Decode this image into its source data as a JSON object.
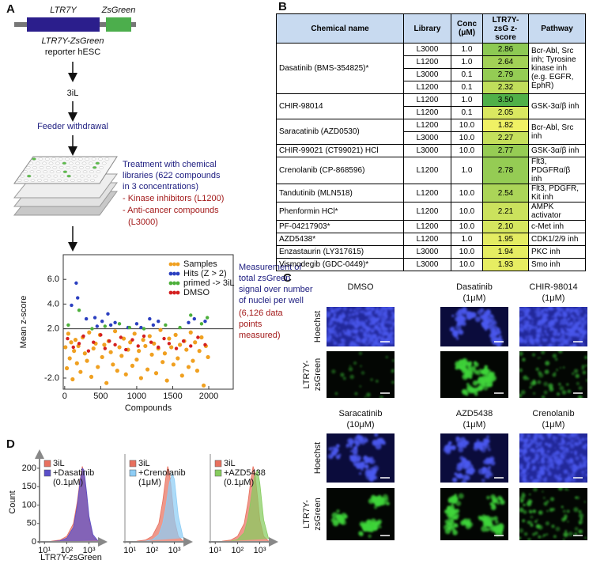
{
  "panel_labels": [
    "A",
    "B",
    "C",
    "D"
  ],
  "panel_a": {
    "construct": {
      "ltr": "LTR7Y",
      "reporter": "ZsGreen"
    },
    "cell_line": [
      "LTR7Y-ZsGreen",
      "reporter hESC"
    ],
    "steps": [
      "3iL",
      "Feeder withdrawal"
    ],
    "treatment": [
      "Treatment with chemical",
      "libraries (622 compounds",
      "in 3 concentrations)"
    ],
    "libraries": [
      "- Kinase inhibitors (L1200)",
      "- Anti-cancer compounds",
      "(L3000)"
    ],
    "measurement": [
      "Measurement of",
      "total zsGreen",
      "signal over number",
      "of nuclei per well"
    ],
    "points_note": [
      "(6,126 data",
      "points",
      "measured)"
    ]
  },
  "table": {
    "columns": [
      "Chemical name",
      "Library",
      "Conc (μM)",
      "LTR7Y-zsG z-score",
      "Pathway"
    ],
    "groups": [
      {
        "name": "Dasatinib (BMS-354825)*",
        "pathway": "Bcr-Abl, Src inh; Tyrosine kinase inh (e.g. EGFR, EphR)",
        "rows": [
          [
            "L3000",
            "1.0",
            "2.86"
          ],
          [
            "L1200",
            "1.0",
            "2.64"
          ],
          [
            "L3000",
            "0.1",
            "2.79"
          ],
          [
            "L1200",
            "0.1",
            "2.32"
          ]
        ]
      },
      {
        "name": "CHIR-98014",
        "pathway": "GSK-3α/β inh",
        "rows": [
          [
            "L1200",
            "1.0",
            "3.50"
          ],
          [
            "L1200",
            "0.1",
            "2.05"
          ]
        ]
      },
      {
        "name": "Saracatinib (AZD0530)",
        "pathway": "Bcr-Abl, Src inh",
        "rows": [
          [
            "L1200",
            "10.0",
            "1.82"
          ],
          [
            "L3000",
            "10.0",
            "2.27"
          ]
        ]
      },
      {
        "name": "CHIR-99021 (CT99021) HCl",
        "pathway": "GSK-3α/β inh",
        "rows": [
          [
            "L3000",
            "10.0",
            "2.77"
          ]
        ]
      },
      {
        "name": "Crenolanib (CP-868596)",
        "pathway": "Flt3, PDGFRα/β inh",
        "rows": [
          [
            "L1200",
            "1.0",
            "2.78"
          ]
        ]
      },
      {
        "name": "Tandutinib (MLN518)",
        "pathway": "Flt3, PDGFR, Kit inh",
        "rows": [
          [
            "L1200",
            "10.0",
            "2.54"
          ]
        ]
      },
      {
        "name": "Phenformin HCl*",
        "pathway": "AMPK activator",
        "rows": [
          [
            "L1200",
            "10.0",
            "2.21"
          ]
        ]
      },
      {
        "name": "PF-04217903*",
        "pathway": "c-Met inh",
        "rows": [
          [
            "L1200",
            "10.0",
            "2.10"
          ]
        ]
      },
      {
        "name": "AZD5438*",
        "pathway": "CDK1/2/9 inh",
        "rows": [
          [
            "L1200",
            "1.0",
            "1.95"
          ]
        ]
      },
      {
        "name": "Enzastaurin (LY317615)",
        "pathway": "PKC inh",
        "rows": [
          [
            "L3000",
            "10.0",
            "1.94"
          ]
        ]
      },
      {
        "name": "Vismodegib (GDC-0449)*",
        "pathway": "Smo inh",
        "rows": [
          [
            "L3000",
            "10.0",
            "1.93"
          ]
        ]
      }
    ]
  },
  "panel_c": {
    "channels": [
      "Hoechst",
      [
        "LTR7Y-",
        "zsGreen"
      ]
    ],
    "blocks": [
      [
        [
          "DMSO"
        ],
        [
          "Dasatinib",
          "(1μM)"
        ],
        [
          "CHIR-98014",
          "(1μM)"
        ]
      ],
      [
        [
          "Saracatinib",
          "(10μM)"
        ],
        [
          "AZD5438",
          "(1μM)"
        ],
        [
          "Crenolanib",
          "(1μM)"
        ]
      ]
    ]
  },
  "chart_data": [
    {
      "type": "scatter",
      "xlabel": "Compounds",
      "ylabel": "Mean z-score",
      "xlim": [
        -20,
        2340
      ],
      "ylim": [
        -2.9,
        8.0
      ],
      "xticks": [
        0,
        500,
        1000,
        1500,
        2000
      ],
      "yticks": [
        {
          "value": 6,
          "label": "6.0"
        },
        {
          "value": 4,
          "label": "4.0"
        },
        {
          "value": 2,
          "label": "2.0"
        },
        {
          "value": -2,
          "label": "-2.0"
        }
      ],
      "threshold": 2,
      "series": [
        {
          "name": "Samples",
          "color": "#f0a020",
          "x": [
            10,
            30,
            50,
            70,
            90,
            110,
            130,
            150,
            170,
            190,
            220,
            250,
            280,
            310,
            340,
            370,
            400,
            430,
            460,
            490,
            520,
            550,
            580,
            610,
            640,
            670,
            700,
            730,
            760,
            790,
            820,
            850,
            880,
            910,
            940,
            970,
            1000,
            1030,
            1060,
            1090,
            1120,
            1150,
            1180,
            1210,
            1240,
            1270,
            1300,
            1330,
            1360,
            1390,
            1420,
            1450,
            1480,
            1510,
            1540,
            1570,
            1600,
            1630,
            1660,
            1690,
            1720,
            1750,
            1780,
            1810,
            1840,
            1870,
            1900,
            1930,
            1960,
            1990
          ],
          "values": [
            0.5,
            -1.2,
            1.6,
            -0.4,
            0.9,
            -2.1,
            0.2,
            1.1,
            -0.8,
            0.6,
            -1.5,
            1.3,
            0.0,
            -0.6,
            1.7,
            -1.9,
            0.4,
            0.8,
            -1.1,
            1.5,
            -0.3,
            0.7,
            -2.4,
            1.0,
            0.1,
            -0.9,
            1.8,
            -1.4,
            0.5,
            -0.2,
            1.2,
            -1.7,
            0.3,
            0.9,
            -1.0,
            1.6,
            -0.5,
            0.2,
            -2.0,
            1.1,
            0.6,
            -1.3,
            1.4,
            -0.1,
            0.8,
            -1.6,
            0.4,
            1.9,
            -0.7,
            0.0,
            -2.2,
            1.2,
            0.5,
            -0.9,
            1.5,
            -0.4,
            0.7,
            -1.8,
            1.0,
            0.3,
            -1.1,
            1.7,
            -0.6,
            0.9,
            -1.4,
            0.2,
            1.3,
            -2.6,
            0.6,
            -0.3
          ]
        },
        {
          "name": "Hits (Z > 2)",
          "color": "#2b3fc0",
          "x": [
            95,
            160,
            180,
            300,
            420,
            450,
            520,
            600,
            640,
            700,
            880,
            1000,
            1060,
            1180,
            1230,
            1300,
            1720,
            1800,
            1950
          ],
          "values": [
            3.9,
            5.7,
            4.5,
            2.8,
            2.9,
            2.2,
            2.6,
            3.2,
            2.3,
            2.5,
            2.1,
            2.4,
            2.1,
            2.8,
            2.3,
            2.6,
            2.5,
            2.8,
            2.6
          ]
        },
        {
          "name": "primed -> 3iL",
          "color": "#4caf3a",
          "x": [
            50,
            200,
            380,
            560,
            760,
            900,
            1100,
            1400,
            1600,
            1750,
            1900,
            1980
          ],
          "values": [
            2.3,
            3.5,
            2.0,
            2.2,
            2.4,
            2.1,
            2.0,
            2.3,
            2.1,
            3.1,
            2.4,
            2.9
          ]
        },
        {
          "name": "DMSO",
          "color": "#d42020",
          "x": [
            40,
            120,
            200,
            260,
            330,
            400,
            500,
            560,
            620,
            700,
            780,
            850,
            940,
            1020,
            1100,
            1200,
            1300,
            1380,
            1450,
            1550,
            1650,
            1750,
            1850,
            1950
          ],
          "values": [
            1.2,
            0.5,
            0.8,
            1.4,
            0.2,
            0.9,
            1.5,
            0.4,
            1.0,
            0.7,
            1.3,
            0.3,
            1.1,
            0.6,
            1.4,
            0.9,
            0.5,
            1.2,
            0.8,
            0.4,
            1.0,
            0.6,
            1.3,
            0.7
          ]
        }
      ]
    },
    {
      "type": "area",
      "log_x": true,
      "xlabel": "LTR7Y-zsGreen",
      "ylabel": "Count",
      "xlim": [
        6,
        3000
      ],
      "ylim": [
        0,
        230
      ],
      "xticks": [
        {
          "value": 10,
          "label": "10¹"
        },
        {
          "value": 100,
          "label": "10²"
        },
        {
          "value": 1000,
          "label": "10³"
        }
      ],
      "yticks": [
        0,
        50,
        100,
        150,
        200
      ],
      "dose": "(0.1μM)",
      "x": [
        20,
        50,
        100,
        200,
        300,
        400,
        500,
        600,
        800,
        1000,
        1500,
        2500
      ],
      "series": [
        {
          "name": "3iL",
          "color": "#e8705e",
          "values": [
            2,
            5,
            15,
            50,
            110,
            170,
            205,
            190,
            120,
            60,
            15,
            2
          ]
        },
        {
          "name": "+Dasatinib",
          "color": "#5a4fc8",
          "values": [
            1,
            3,
            10,
            40,
            100,
            165,
            200,
            195,
            130,
            70,
            20,
            3
          ]
        }
      ]
    },
    {
      "type": "area",
      "log_x": true,
      "xlim": [
        6,
        3000
      ],
      "ylim": [
        0,
        230
      ],
      "xticks": [
        {
          "value": 10,
          "label": "10¹"
        },
        {
          "value": 100,
          "label": "10²"
        },
        {
          "value": 1000,
          "label": "10³"
        }
      ],
      "dose": "(1μM)",
      "x": [
        20,
        50,
        100,
        200,
        300,
        400,
        500,
        600,
        800,
        1000,
        1500,
        2500
      ],
      "series": [
        {
          "name": "3iL",
          "color": "#e8705e",
          "values": [
            2,
            5,
            15,
            50,
            110,
            170,
            205,
            190,
            120,
            60,
            15,
            2
          ]
        },
        {
          "name": "+Crenolanib",
          "color": "#8ecdf5",
          "values": [
            1,
            2,
            5,
            20,
            50,
            90,
            130,
            160,
            185,
            170,
            70,
            10
          ]
        }
      ]
    },
    {
      "type": "area",
      "log_x": true,
      "xlim": [
        6,
        3000
      ],
      "ylim": [
        0,
        230
      ],
      "xticks": [
        {
          "value": 10,
          "label": "10¹"
        },
        {
          "value": 100,
          "label": "10²"
        },
        {
          "value": 1000,
          "label": "10³"
        }
      ],
      "dose": "(0.1μM)",
      "x": [
        20,
        50,
        100,
        200,
        300,
        400,
        500,
        600,
        800,
        1000,
        1500,
        2500
      ],
      "series": [
        {
          "name": "3iL",
          "color": "#e8705e",
          "values": [
            2,
            5,
            15,
            50,
            110,
            170,
            205,
            190,
            120,
            60,
            15,
            2
          ]
        },
        {
          "name": "+AZD5438",
          "color": "#86cc5e",
          "values": [
            1,
            2,
            6,
            25,
            65,
            115,
            155,
            180,
            195,
            160,
            60,
            8
          ]
        }
      ]
    }
  ]
}
